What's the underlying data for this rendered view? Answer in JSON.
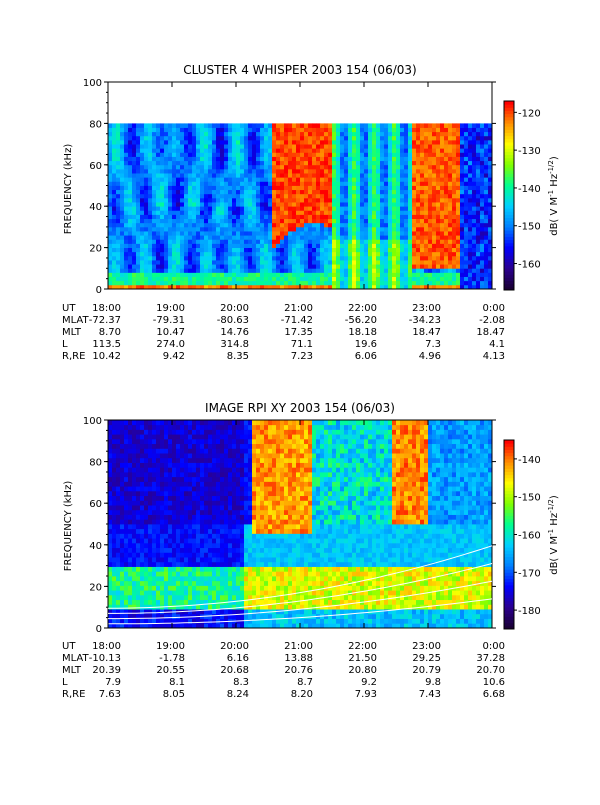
{
  "chart_data": [
    {
      "type": "heatmap",
      "title": "CLUSTER 4 WHISPER 2003 154 (06/03)",
      "ylabel": "FREQUENCY (kHz)",
      "ylim": [
        0,
        100
      ],
      "y_ticks": [
        "0",
        "20",
        "40",
        "60",
        "80",
        "100"
      ],
      "data_ylim": [
        0,
        80
      ],
      "x_tick_labels": [
        "18:00",
        "19:00",
        "20:00",
        "21:00",
        "22:00",
        "23:00",
        "0:00"
      ],
      "colorbar": {
        "label": "dB( V M⁻¹ Hz⁻¹′²)",
        "label_text": "dB( V M",
        "label_exp1": "-1",
        "label_mid": " Hz",
        "label_exp2": "-1/2",
        "label_end": ")",
        "range": [
          -167,
          -117
        ],
        "ticks": [
          "-120",
          "-130",
          "-140",
          "-150",
          "-160"
        ],
        "tick_values": [
          -120,
          -130,
          -140,
          -150,
          -160
        ]
      },
      "ephemeris": {
        "labels": [
          "UT",
          "MLAT",
          "MLT",
          "L",
          "R,RE"
        ],
        "rows": [
          [
            "18:00",
            "19:00",
            "20:00",
            "21:00",
            "22:00",
            "23:00",
            "0:00"
          ],
          [
            "-72.37",
            "-79.31",
            "-80.63",
            "-71.42",
            "-56.20",
            "-34.23",
            "-2.08"
          ],
          [
            "8.70",
            "10.47",
            "14.76",
            "17.35",
            "18.18",
            "18.47",
            "18.47"
          ],
          [
            "113.5",
            "274.0",
            "314.8",
            "71.1",
            "19.6",
            "7.3",
            "4.1"
          ],
          [
            "10.42",
            "9.42",
            "8.35",
            "7.23",
            "6.06",
            "4.96",
            "4.13"
          ]
        ]
      }
    },
    {
      "type": "heatmap",
      "title": "IMAGE RPI XY 2003 154 (06/03)",
      "ylabel": "FREQUENCY (kHz)",
      "ylim": [
        0,
        100
      ],
      "y_ticks": [
        "0",
        "20",
        "40",
        "60",
        "80",
        "100"
      ],
      "x_tick_labels": [
        "18:00",
        "19:00",
        "20:00",
        "21:00",
        "22:00",
        "23:00",
        "0:00"
      ],
      "colorbar": {
        "label": "dB( V M⁻¹ Hz⁻¹′²)",
        "label_text": "dB( V M",
        "label_exp1": "-1",
        "label_mid": " Hz",
        "label_exp2": "-1/2",
        "label_end": ")",
        "range": [
          -185,
          -135
        ],
        "ticks": [
          "-140",
          "-150",
          "-160",
          "-170",
          "-180"
        ],
        "tick_values": [
          -140,
          -150,
          -160,
          -170,
          -180
        ]
      },
      "ephemeris": {
        "labels": [
          "UT",
          "MLAT",
          "MLT",
          "L",
          "R,RE"
        ],
        "rows": [
          [
            "18:00",
            "19:00",
            "20:00",
            "21:00",
            "22:00",
            "23:00",
            "0:00"
          ],
          [
            "-10.13",
            "-1.78",
            "6.16",
            "13.88",
            "21.50",
            "29.25",
            "37.28"
          ],
          [
            "20.39",
            "20.55",
            "20.68",
            "20.76",
            "20.80",
            "20.79",
            "20.70"
          ],
          [
            "7.9",
            "8.1",
            "8.3",
            "8.7",
            "9.2",
            "9.8",
            "10.6"
          ],
          [
            "7.63",
            "8.05",
            "8.24",
            "8.20",
            "7.93",
            "7.43",
            "6.68"
          ]
        ]
      }
    }
  ],
  "colors": {
    "colormap": [
      "#1a0033",
      "#2a0090",
      "#0000ff",
      "#0080ff",
      "#00d0ff",
      "#00ff90",
      "#80ff00",
      "#ffff00",
      "#ff9000",
      "#ff0000"
    ]
  }
}
